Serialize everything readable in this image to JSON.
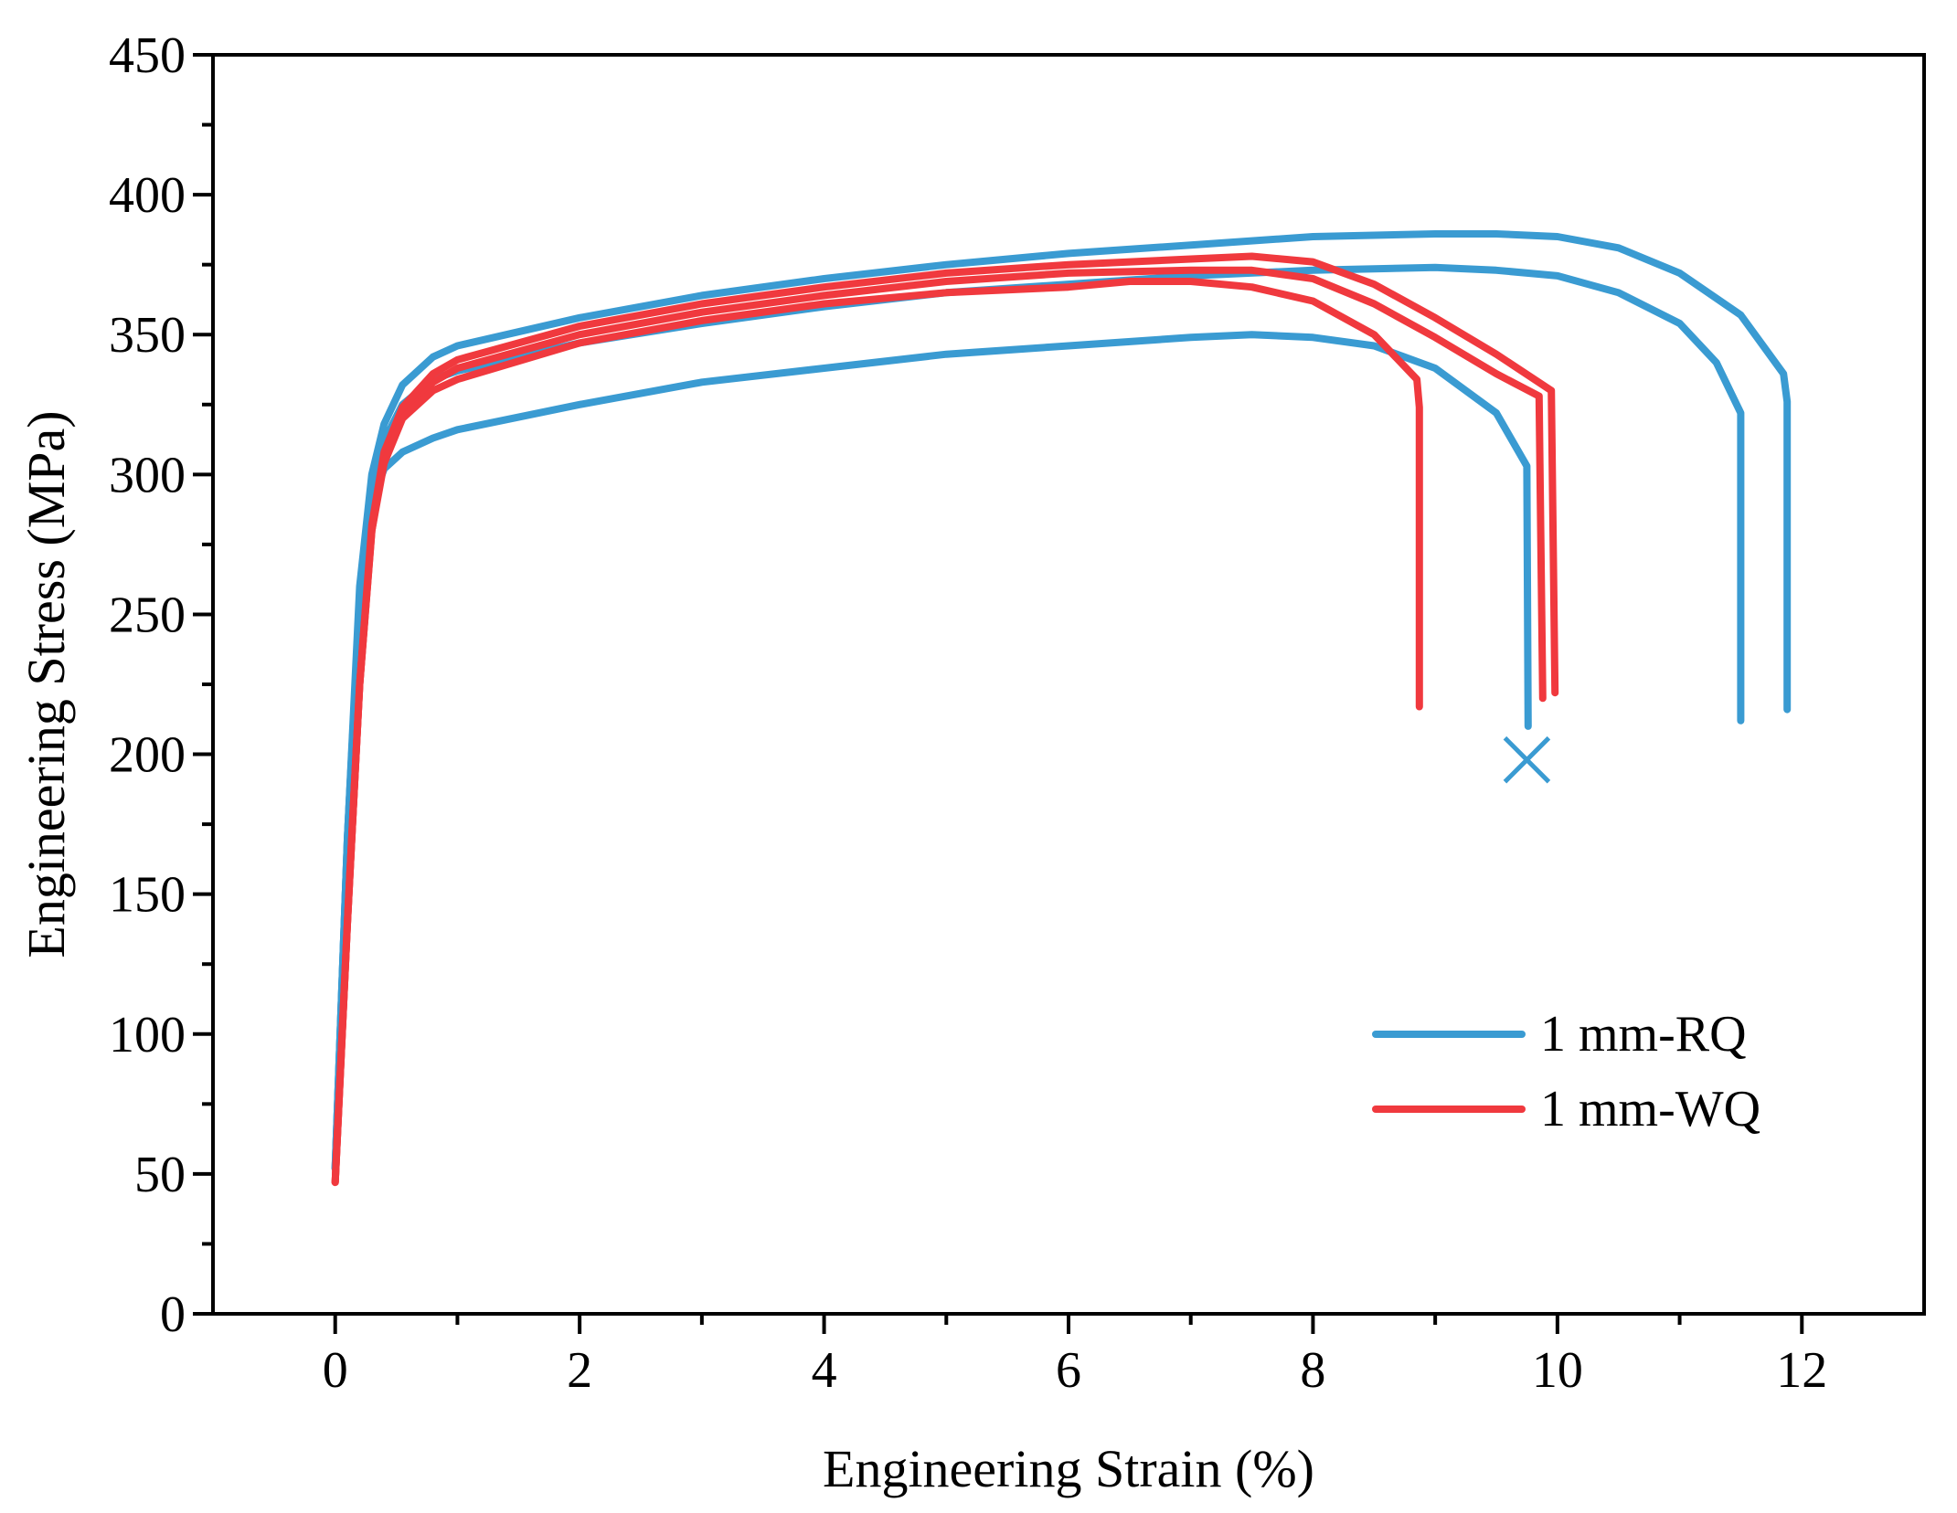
{
  "chart_data": {
    "type": "line",
    "title": "",
    "xlabel": "Engineering Strain (%)",
    "ylabel": "Engineering Stress (MPa)",
    "xlim": [
      -1,
      13
    ],
    "ylim": [
      0,
      450
    ],
    "xticks": [
      0,
      2,
      4,
      6,
      8,
      10,
      12
    ],
    "yticks": [
      0,
      50,
      100,
      150,
      200,
      250,
      300,
      350,
      400,
      450
    ],
    "grid": false,
    "legend_position": "bottom-right",
    "legend": [
      {
        "label": "1 mm-RQ",
        "color": "#3a9bd2"
      },
      {
        "label": "1 mm-WQ",
        "color": "#f0393e"
      }
    ],
    "series": [
      {
        "name": "1 mm-RQ",
        "color": "#3a9bd2",
        "points": [
          [
            0,
            52
          ],
          [
            0.1,
            170
          ],
          [
            0.2,
            260
          ],
          [
            0.3,
            300
          ],
          [
            0.4,
            318
          ],
          [
            0.55,
            332
          ],
          [
            0.8,
            342
          ],
          [
            1,
            346
          ],
          [
            2,
            356
          ],
          [
            3,
            364
          ],
          [
            4,
            370
          ],
          [
            5,
            375
          ],
          [
            6,
            379
          ],
          [
            7,
            382
          ],
          [
            8,
            385
          ],
          [
            9,
            386
          ],
          [
            9.5,
            386
          ],
          [
            10,
            385
          ],
          [
            10.5,
            381
          ],
          [
            11,
            372
          ],
          [
            11.5,
            357
          ],
          [
            11.85,
            336
          ],
          [
            11.88,
            326
          ],
          [
            11.88,
            216
          ]
        ]
      },
      {
        "name": "1 mm-RQ",
        "color": "#3a9bd2",
        "points": [
          [
            0,
            52
          ],
          [
            0.1,
            170
          ],
          [
            0.2,
            255
          ],
          [
            0.3,
            290
          ],
          [
            0.4,
            312
          ],
          [
            0.55,
            325
          ],
          [
            0.8,
            334
          ],
          [
            1,
            337
          ],
          [
            2,
            347
          ],
          [
            3,
            354
          ],
          [
            4,
            360
          ],
          [
            5,
            365
          ],
          [
            6,
            368
          ],
          [
            7,
            371
          ],
          [
            8,
            373
          ],
          [
            9,
            374
          ],
          [
            9.5,
            373
          ],
          [
            10,
            371
          ],
          [
            10.5,
            365
          ],
          [
            11,
            354
          ],
          [
            11.3,
            340
          ],
          [
            11.5,
            322
          ],
          [
            11.5,
            212
          ]
        ]
      },
      {
        "name": "1 mm-RQ",
        "color": "#3a9bd2",
        "points": [
          [
            0,
            52
          ],
          [
            0.1,
            170
          ],
          [
            0.2,
            255
          ],
          [
            0.3,
            290
          ],
          [
            0.4,
            302
          ],
          [
            0.55,
            308
          ],
          [
            0.8,
            313
          ],
          [
            1,
            316
          ],
          [
            2,
            325
          ],
          [
            3,
            333
          ],
          [
            4,
            338
          ],
          [
            5,
            343
          ],
          [
            6,
            346
          ],
          [
            7,
            349
          ],
          [
            7.5,
            350
          ],
          [
            8,
            349
          ],
          [
            8.5,
            346
          ],
          [
            9,
            338
          ],
          [
            9.5,
            322
          ],
          [
            9.75,
            303
          ],
          [
            9.76,
            210
          ]
        ]
      },
      {
        "name": "1 mm-WQ",
        "color": "#f0393e",
        "points": [
          [
            0,
            47
          ],
          [
            0.1,
            140
          ],
          [
            0.2,
            225
          ],
          [
            0.3,
            280
          ],
          [
            0.4,
            306
          ],
          [
            0.55,
            322
          ],
          [
            0.8,
            333
          ],
          [
            1,
            338
          ],
          [
            2,
            350
          ],
          [
            3,
            358
          ],
          [
            4,
            364
          ],
          [
            5,
            369
          ],
          [
            6,
            372
          ],
          [
            7,
            373
          ],
          [
            7.5,
            373
          ],
          [
            8,
            370
          ],
          [
            8.5,
            361
          ],
          [
            9,
            349
          ],
          [
            9.5,
            336
          ],
          [
            9.85,
            328
          ],
          [
            9.88,
            220
          ]
        ]
      },
      {
        "name": "1 mm-WQ",
        "color": "#f0393e",
        "points": [
          [
            0,
            47
          ],
          [
            0.1,
            140
          ],
          [
            0.2,
            225
          ],
          [
            0.3,
            282
          ],
          [
            0.4,
            308
          ],
          [
            0.55,
            324
          ],
          [
            0.8,
            336
          ],
          [
            1,
            341
          ],
          [
            2,
            353
          ],
          [
            3,
            361
          ],
          [
            4,
            367
          ],
          [
            5,
            372
          ],
          [
            6,
            375
          ],
          [
            7,
            377
          ],
          [
            7.5,
            378
          ],
          [
            8,
            376
          ],
          [
            8.5,
            368
          ],
          [
            9,
            356
          ],
          [
            9.5,
            343
          ],
          [
            9.95,
            330
          ],
          [
            9.98,
            222
          ]
        ]
      },
      {
        "name": "1 mm-WQ",
        "color": "#f0393e",
        "points": [
          [
            0,
            47
          ],
          [
            0.1,
            140
          ],
          [
            0.2,
            225
          ],
          [
            0.3,
            280
          ],
          [
            0.4,
            304
          ],
          [
            0.55,
            320
          ],
          [
            0.8,
            330
          ],
          [
            1,
            334
          ],
          [
            2,
            347
          ],
          [
            3,
            355
          ],
          [
            4,
            361
          ],
          [
            5,
            365
          ],
          [
            6,
            367
          ],
          [
            6.5,
            369
          ],
          [
            7,
            369
          ],
          [
            7.5,
            367
          ],
          [
            8,
            362
          ],
          [
            8.5,
            350
          ],
          [
            8.85,
            334
          ],
          [
            8.87,
            324
          ],
          [
            8.87,
            217
          ]
        ]
      }
    ],
    "annotations": [
      {
        "type": "x-marker",
        "x": 9.75,
        "y": 198,
        "color": "#3a9bd2"
      }
    ]
  }
}
